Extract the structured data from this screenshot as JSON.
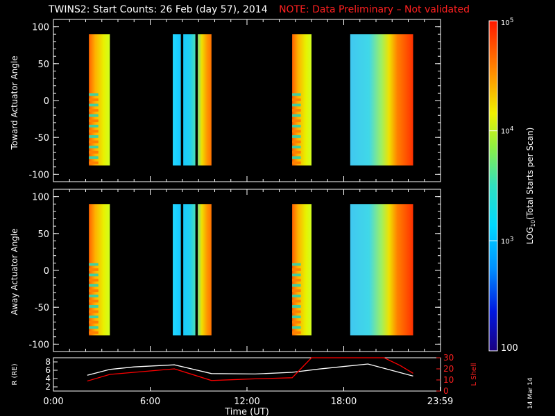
{
  "header": {
    "title": "TWINS2: Start Counts: 26 Feb (day  57), 2014",
    "note": "NOTE: Data Preliminary – Not validated"
  },
  "footer": {
    "date_stamp": "14 Mar 14"
  },
  "colorbar": {
    "label": "LOG10(Total Starts per Scan)",
    "tick_labels": [
      "100",
      "10^3",
      "10^4",
      "10^5"
    ],
    "range": [
      100,
      100000
    ],
    "scale": "log"
  },
  "chart_data": [
    {
      "type": "heatmap",
      "panel": "top",
      "ylabel": "Toward Actuator Angle",
      "ylim": [
        -110,
        110
      ],
      "yticks": [
        -100,
        -50,
        0,
        50,
        100
      ],
      "ytick_labels": [
        "-100",
        "-50",
        "0",
        "50",
        "100"
      ],
      "xlim_hours": [
        0,
        24
      ],
      "data_blocks": [
        {
          "start_h": 2.2,
          "end_h": 3.5,
          "level": "yellow-orange"
        },
        {
          "start_h": 7.4,
          "end_h": 9.8,
          "level": "cyan-orange"
        },
        {
          "start_h": 14.8,
          "end_h": 16.0,
          "level": "yellow-orange"
        },
        {
          "start_h": 18.4,
          "end_h": 22.3,
          "level": "cyan-red"
        }
      ]
    },
    {
      "type": "heatmap",
      "panel": "middle",
      "ylabel": "Away Actuator Angle",
      "ylim": [
        -110,
        110
      ],
      "yticks": [
        -100,
        -50,
        0,
        50,
        100
      ],
      "ytick_labels": [
        "-100",
        "-50",
        "0",
        "50",
        "100"
      ],
      "xlim_hours": [
        0,
        24
      ],
      "data_blocks": [
        {
          "start_h": 2.2,
          "end_h": 3.5,
          "level": "yellow-orange"
        },
        {
          "start_h": 7.4,
          "end_h": 9.8,
          "level": "cyan-orange"
        },
        {
          "start_h": 14.8,
          "end_h": 16.0,
          "level": "yellow-orange"
        },
        {
          "start_h": 18.4,
          "end_h": 22.3,
          "level": "cyan-red"
        }
      ]
    },
    {
      "type": "line",
      "panel": "bottom",
      "xlabel": "Time (UT)",
      "x_tick_labels": [
        "0:00",
        "6:00",
        "12:00",
        "18:00",
        "23:59"
      ],
      "x_ticks_hours": [
        0,
        6,
        12,
        18,
        23.98
      ],
      "ylabel_left": "R (RE)",
      "ylim_left": [
        1,
        9
      ],
      "yticks_left": [
        "2",
        "4",
        "6",
        "8"
      ],
      "ylabel_right": "L Shell",
      "ylim_right": [
        0,
        30
      ],
      "yticks_right": [
        "0",
        "10",
        "20",
        "30"
      ],
      "series": [
        {
          "name": "R (RE)",
          "color": "#ffffff",
          "axis": "left",
          "x": [
            2.1,
            3.5,
            5.0,
            7.5,
            9.8,
            12.5,
            14.8,
            16.5,
            19.5,
            22.3
          ],
          "y": [
            4.8,
            6.2,
            6.8,
            7.3,
            5.2,
            5.1,
            5.5,
            6.3,
            7.5,
            4.6
          ]
        },
        {
          "name": "L Shell",
          "color": "#ff0000",
          "axis": "right",
          "x": [
            2.1,
            3.5,
            5.5,
            7.5,
            9.8,
            12.5,
            14.8,
            16.0,
            20.5,
            21.5,
            22.3
          ],
          "y": [
            9,
            15,
            17.5,
            20,
            9.5,
            11,
            12,
            30,
            30,
            23,
            16
          ]
        }
      ]
    }
  ]
}
